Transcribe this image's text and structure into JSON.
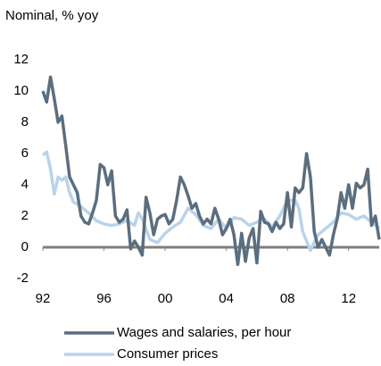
{
  "chart_data": {
    "type": "line",
    "y_label": "Nominal, % yoy",
    "xlim": [
      1992,
      2014
    ],
    "xticks": [
      {
        "value": 1992,
        "label": "92"
      },
      {
        "value": 1996,
        "label": "96"
      },
      {
        "value": 2000,
        "label": "00"
      },
      {
        "value": 2004,
        "label": "04"
      },
      {
        "value": 2008,
        "label": "08"
      },
      {
        "value": 2012,
        "label": "12"
      }
    ],
    "ylim": [
      -2,
      12
    ],
    "yticks": [
      -2,
      0,
      2,
      4,
      6,
      8,
      10,
      12
    ],
    "grid": false,
    "legend": "bottom",
    "series": [
      {
        "name": "Wages and salaries, per hour",
        "color": "#5b6e7f",
        "x": [
          1992,
          1992.25,
          1992.5,
          1992.75,
          1993,
          1993.25,
          1993.5,
          1993.75,
          1994,
          1994.25,
          1994.5,
          1994.75,
          1995,
          1995.25,
          1995.5,
          1995.75,
          1996,
          1996.25,
          1996.5,
          1996.75,
          1997,
          1997.25,
          1997.5,
          1997.75,
          1998,
          1998.25,
          1998.5,
          1998.75,
          1999,
          1999.25,
          1999.5,
          1999.75,
          2000,
          2000.25,
          2000.5,
          2000.75,
          2001,
          2001.25,
          2001.5,
          2001.75,
          2002,
          2002.25,
          2002.5,
          2002.75,
          2003,
          2003.25,
          2003.5,
          2003.75,
          2004,
          2004.25,
          2004.5,
          2004.75,
          2005,
          2005.25,
          2005.5,
          2005.75,
          2006,
          2006.25,
          2006.5,
          2006.75,
          2007,
          2007.25,
          2007.5,
          2007.75,
          2008,
          2008.25,
          2008.5,
          2008.75,
          2009,
          2009.25,
          2009.5,
          2009.75,
          2010,
          2010.25,
          2010.5,
          2010.75,
          2011,
          2011.25,
          2011.5,
          2011.75,
          2012,
          2012.25,
          2012.5,
          2012.75,
          2013,
          2013.25,
          2013.5,
          2013.75,
          2014
        ],
        "values": [
          10,
          9.3,
          10.9,
          9.5,
          8,
          8.4,
          6.5,
          4.5,
          4,
          3.5,
          2,
          1.6,
          1.5,
          2.2,
          3,
          5.3,
          5.1,
          4,
          4.9,
          2,
          1.6,
          1.8,
          2.4,
          -0.1,
          0.4,
          0,
          -0.5,
          3.2,
          2.2,
          0.8,
          1.8,
          2,
          2.1,
          1.5,
          1.8,
          3,
          4.5,
          4,
          3.3,
          2.5,
          2.8,
          2,
          1.5,
          1.8,
          1.5,
          2.5,
          1.8,
          0.8,
          1.2,
          1.8,
          0.8,
          -1.1,
          0.9,
          -0.9,
          0.6,
          1.2,
          -1,
          2.3,
          1.6,
          1.5,
          1,
          1.6,
          1.2,
          1.5,
          3.5,
          1.3,
          3.8,
          3.5,
          3.8,
          6,
          4.5,
          1,
          0,
          0.5,
          0,
          -0.5,
          0.8,
          1.8,
          3.5,
          2.5,
          4,
          2.5,
          4.1,
          3.8,
          4,
          5,
          1.4,
          2,
          0.5
        ]
      },
      {
        "name": "Consumer prices",
        "color": "#b9d3ea",
        "x": [
          1992,
          1992.25,
          1992.5,
          1992.75,
          1993,
          1993.25,
          1993.5,
          1993.75,
          1994,
          1994.5,
          1995,
          1995.5,
          1996,
          1996.5,
          1997,
          1997.5,
          1998,
          1998.25,
          1998.5,
          1999,
          1999.5,
          2000,
          2000.5,
          2001,
          2001.5,
          2002,
          2002.5,
          2003,
          2003.5,
          2004,
          2004.5,
          2005,
          2005.5,
          2006,
          2006.5,
          2007,
          2007.5,
          2008,
          2008.5,
          2008.75,
          2009,
          2009.5,
          2010,
          2010.5,
          2011,
          2011.5,
          2012,
          2012.5,
          2013,
          2013.5,
          2014
        ],
        "values": [
          5.9,
          6.1,
          5,
          3.4,
          4.5,
          4.3,
          4.5,
          3.5,
          2.9,
          2.6,
          2.2,
          1.7,
          1.5,
          1.4,
          1.5,
          1.7,
          1.4,
          2.2,
          1.8,
          0.5,
          0.3,
          0.9,
          1.3,
          1.6,
          2.5,
          2.1,
          1.4,
          1.2,
          1.8,
          1.2,
          1.9,
          1.8,
          1.4,
          1.6,
          1.8,
          1.3,
          2,
          3,
          3,
          2.5,
          1,
          -0.2,
          0.8,
          1.2,
          1.6,
          2.2,
          2.1,
          1.8,
          2,
          1.6,
          1.2
        ]
      }
    ]
  }
}
